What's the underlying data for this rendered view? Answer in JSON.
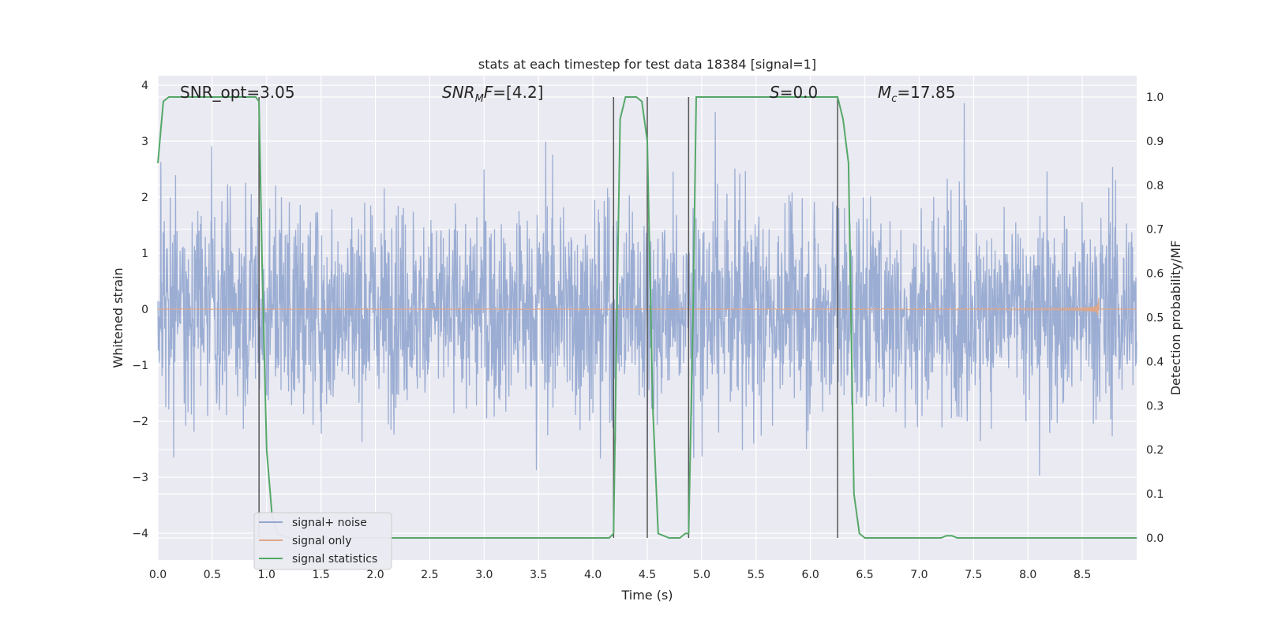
{
  "chart_data": {
    "type": "line",
    "title": "stats at each timestep for test data 18384 [signal=1]",
    "xlabel": "Time (s)",
    "ylabel_left": "Whitened strain",
    "ylabel_right": "Detection probability/MF",
    "xlim": [
      0.0,
      9.0
    ],
    "ylim_left": [
      -4.4,
      4.2
    ],
    "ylim_right": [
      -0.05,
      1.03
    ],
    "xticks": [
      "0.0",
      "0.5",
      "1.0",
      "1.5",
      "2.0",
      "2.5",
      "3.0",
      "3.5",
      "4.0",
      "4.5",
      "5.0",
      "5.5",
      "6.0",
      "6.5",
      "7.0",
      "7.5",
      "8.0",
      "8.5"
    ],
    "yticks_left": [
      "4",
      "3",
      "2",
      "1",
      "0",
      "−1",
      "−2",
      "−3",
      "−4"
    ],
    "yticks_right": [
      "1.0",
      "0.9",
      "0.8",
      "0.7",
      "0.6",
      "0.5",
      "0.4",
      "0.3",
      "0.2",
      "0.1",
      "0.0"
    ],
    "grid": true,
    "legend_position": "lower-left",
    "annotations": [
      {
        "label": "SNR_opt=3.05",
        "x": 0.2,
        "y": 4.0
      },
      {
        "label": "SNR_MF=[4.2]",
        "x": 2.6,
        "y": 4.0
      },
      {
        "label": "S=0.0",
        "x": 5.6,
        "y": 4.0
      },
      {
        "label": "M_c=17.85",
        "x": 6.6,
        "y": 4.0
      }
    ],
    "vertical_lines": [
      0.93,
      4.19,
      4.5,
      4.88,
      6.25
    ],
    "series": [
      {
        "name": "signal+ noise",
        "axis": "left",
        "color": "#92a6cf",
        "description_range": [
          -4.0,
          3.8
        ]
      },
      {
        "name": "signal only",
        "axis": "left",
        "color": "#e0a688",
        "chirp_end": 8.65,
        "chirp_peak_amplitude": 0.6
      },
      {
        "name": "signal statistics",
        "axis": "right",
        "color": "#55a868",
        "x": [
          0.0,
          0.05,
          0.1,
          0.2,
          0.3,
          0.4,
          0.5,
          0.6,
          0.7,
          0.8,
          0.9,
          0.93,
          0.96,
          1.0,
          1.05,
          1.1,
          1.2,
          1.5,
          2.0,
          2.5,
          3.0,
          3.5,
          4.0,
          4.1,
          4.15,
          4.19,
          4.22,
          4.25,
          4.3,
          4.35,
          4.4,
          4.45,
          4.5,
          4.55,
          4.6,
          4.7,
          4.8,
          4.85,
          4.88,
          4.92,
          4.95,
          5.0,
          5.5,
          6.0,
          6.25,
          6.3,
          6.35,
          6.4,
          6.45,
          6.5,
          7.0,
          7.2,
          7.25,
          7.3,
          7.35,
          7.4,
          7.5,
          8.0,
          8.5,
          9.0
        ],
        "y": [
          0.85,
          0.99,
          1.0,
          1.0,
          1.0,
          1.0,
          1.0,
          1.0,
          1.0,
          1.0,
          1.0,
          0.99,
          0.6,
          0.2,
          0.05,
          0.01,
          0.0,
          0.0,
          0.0,
          0.0,
          0.0,
          0.0,
          0.0,
          0.0,
          0.0,
          0.01,
          0.5,
          0.95,
          1.0,
          1.0,
          1.0,
          0.99,
          0.9,
          0.3,
          0.01,
          0.0,
          0.0,
          0.01,
          0.01,
          0.5,
          1.0,
          1.0,
          1.0,
          1.0,
          1.0,
          0.95,
          0.85,
          0.1,
          0.01,
          0.0,
          0.0,
          0.0,
          0.005,
          0.005,
          0.0,
          0.0,
          0.0,
          0.0,
          0.0,
          0.0
        ]
      }
    ]
  }
}
